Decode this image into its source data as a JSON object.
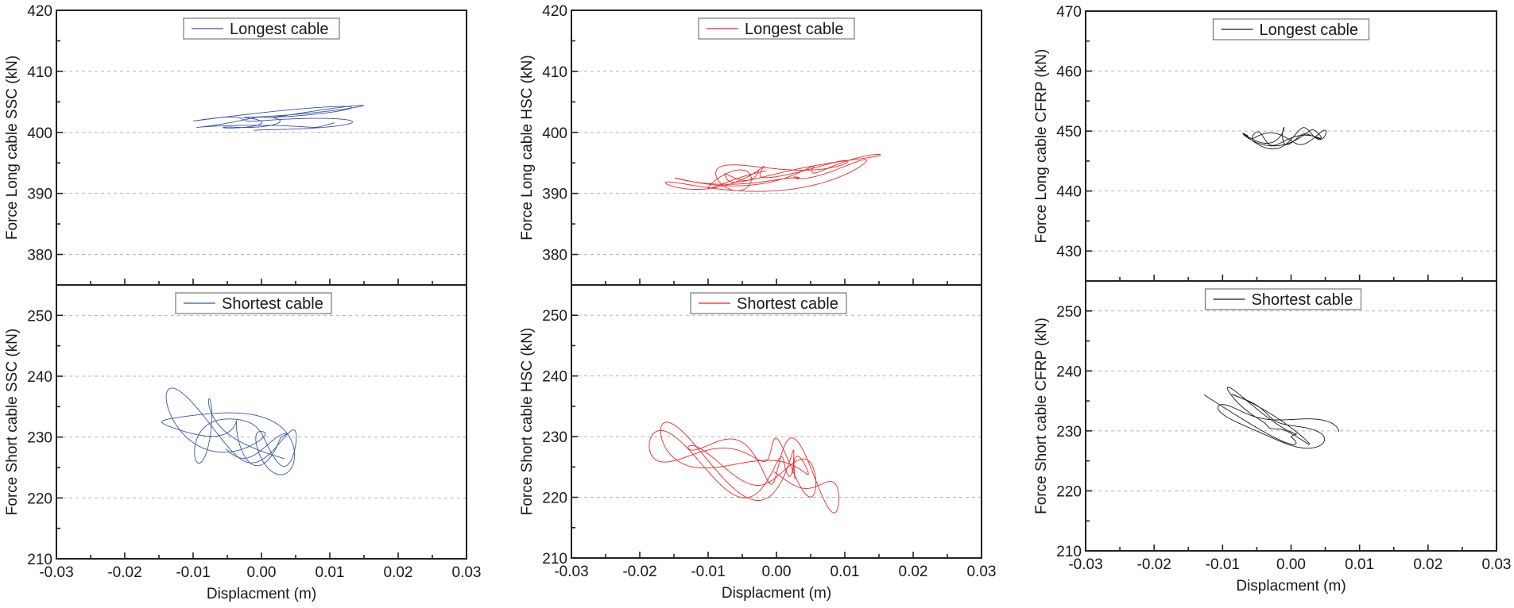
{
  "chart_data": [
    {
      "type": "line",
      "id": "ssc",
      "color": "#3a55a4",
      "xlabel": "Displacment (m)",
      "xlim": [
        -0.03,
        0.03
      ],
      "xticks": [
        "-0.03",
        "-0.02",
        "-0.01",
        "0.00",
        "0.01",
        "0.02",
        "0.03"
      ],
      "xtick_values": [
        -0.03,
        -0.02,
        -0.01,
        0.0,
        0.01,
        0.02,
        0.03
      ],
      "grid": "horizontal-dashed",
      "panels": [
        {
          "position": "top",
          "ylabel": "Force Long cable SSC (kN)",
          "ylim": [
            375,
            420
          ],
          "yticks": [
            "380",
            "390",
            "400",
            "410",
            "420"
          ],
          "ytick_values": [
            380,
            390,
            400,
            410,
            420
          ],
          "legend": "Longest cable",
          "legend_position": "top-center",
          "trace": {
            "center_x": 0.0,
            "center_y": 402,
            "slope": 80,
            "x_extent": [
              -0.022,
              0.022
            ],
            "y_extent": [
              396.5,
              407.5
            ],
            "seed": 11
          }
        },
        {
          "position": "bottom",
          "ylabel": "Force Short cable SSC (kN)",
          "ylim": [
            210,
            255
          ],
          "yticks": [
            "210",
            "220",
            "230",
            "240",
            "250"
          ],
          "ytick_values": [
            210,
            220,
            230,
            240,
            250
          ],
          "legend": "Shortest cable",
          "legend_position": "top-center",
          "trace": {
            "center_x": 0.0,
            "center_y": 229,
            "slope": -300,
            "x_extent": [
              -0.023,
              0.019
            ],
            "y_extent": [
              217,
              242.5
            ],
            "seed": 23
          }
        }
      ]
    },
    {
      "type": "line",
      "id": "hsc",
      "color": "#e8282b",
      "xlabel": "Displacment (m)",
      "xlim": [
        -0.03,
        0.03
      ],
      "xticks": [
        "-0.03",
        "-0.02",
        "-0.01",
        "0.00",
        "0.01",
        "0.02",
        "0.03"
      ],
      "xtick_values": [
        -0.03,
        -0.02,
        -0.01,
        0.0,
        0.01,
        0.02,
        0.03
      ],
      "grid": "horizontal-dashed",
      "panels": [
        {
          "position": "top",
          "ylabel": "Force Long cable HSC (kN)",
          "ylim": [
            375,
            420
          ],
          "yticks": [
            "380",
            "390",
            "400",
            "410",
            "420"
          ],
          "ytick_values": [
            380,
            390,
            400,
            410,
            420
          ],
          "legend": "Longest cable",
          "legend_position": "top-center",
          "trace": {
            "center_x": 0.0,
            "center_y": 393,
            "slope": 120,
            "x_extent": [
              -0.022,
              0.022
            ],
            "y_extent": [
              387,
              400
            ],
            "seed": 37
          }
        },
        {
          "position": "bottom",
          "ylabel": "Force Short cable HSC (kN)",
          "ylim": [
            210,
            255
          ],
          "yticks": [
            "210",
            "220",
            "230",
            "240",
            "250"
          ],
          "ytick_values": [
            210,
            220,
            230,
            240,
            250
          ],
          "legend": "Shortest cable",
          "legend_position": "top-center",
          "trace": {
            "center_x": 0.0,
            "center_y": 224.5,
            "slope": -300,
            "x_extent": [
              -0.023,
              0.019
            ],
            "y_extent": [
              211,
              240.5
            ],
            "seed": 41
          }
        }
      ]
    },
    {
      "type": "line",
      "id": "cfrp",
      "color": "#1a1a1a",
      "xlabel": "Displacment (m)",
      "xlim": [
        -0.03,
        0.03
      ],
      "xticks": [
        "-0.03",
        "-0.02",
        "-0.01",
        "0.00",
        "0.01",
        "0.02",
        "0.03"
      ],
      "xtick_values": [
        -0.03,
        -0.02,
        -0.01,
        0.0,
        0.01,
        0.02,
        0.03
      ],
      "grid": "horizontal-dashed",
      "panels": [
        {
          "position": "top",
          "ylabel": "Force Long cable CFRP (kN)",
          "ylim": [
            425,
            470
          ],
          "yticks": [
            "430",
            "440",
            "450",
            "460",
            "470"
          ],
          "ytick_values": [
            430,
            440,
            450,
            460,
            470
          ],
          "legend": "Longest cable",
          "legend_position": "top-center",
          "trace": {
            "center_x": 0.0,
            "center_y": 449,
            "slope": 30,
            "x_extent": [
              -0.022,
              0.022
            ],
            "y_extent": [
              445,
              453
            ],
            "seed": 53
          }
        },
        {
          "position": "bottom",
          "ylabel": "Force Short cable CFRP (kN)",
          "ylim": [
            210,
            255
          ],
          "yticks": [
            "210",
            "220",
            "230",
            "240",
            "250"
          ],
          "ytick_values": [
            210,
            220,
            230,
            240,
            250
          ],
          "legend": "Shortest cable",
          "legend_position": "top-center",
          "trace": {
            "center_x": 0.0,
            "center_y": 230.5,
            "slope": -250,
            "x_extent": [
              -0.023,
              0.019
            ],
            "y_extent": [
              221,
              239.5
            ],
            "seed": 67
          }
        }
      ]
    }
  ]
}
